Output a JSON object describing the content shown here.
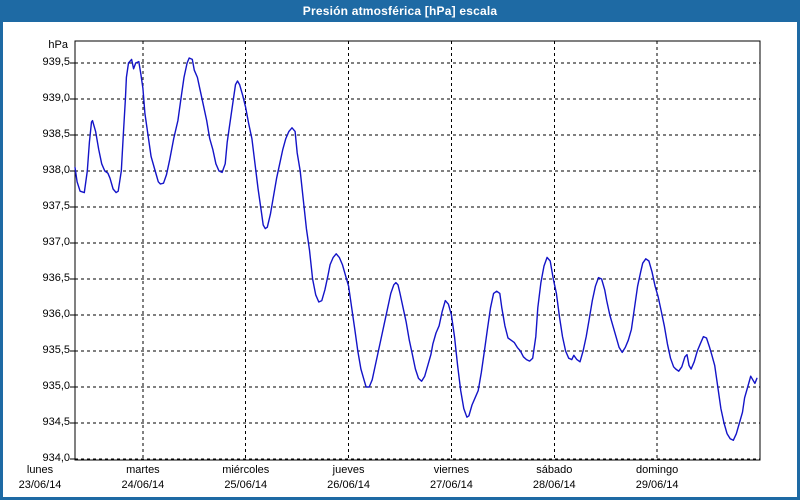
{
  "window": {
    "title": "Presión atmosférica [hPa] escala"
  },
  "colors": {
    "accent": "#1e6aa4",
    "line": "#1414c8",
    "grid": "#000000",
    "axis": "#000000",
    "text": "#000000",
    "plot_bg": "#ffffff",
    "title_text": "#ffffff"
  },
  "chart_data": {
    "type": "line",
    "title": "Presión atmosférica [hPa] escala",
    "xlabel": "",
    "ylabel": "hPa",
    "grid": "dashed",
    "legend": "none",
    "ylim": [
      933.99,
      939.81
    ],
    "xlim_days": [
      0.34,
      7.0
    ],
    "gridline_days": [
      1,
      2,
      3,
      4,
      5,
      6
    ],
    "y_ticks": [
      {
        "v": 939.5,
        "label": "939,5"
      },
      {
        "v": 939.0,
        "label": "939,0"
      },
      {
        "v": 938.5,
        "label": "938,5"
      },
      {
        "v": 938.0,
        "label": "938,0"
      },
      {
        "v": 937.5,
        "label": "937,5"
      },
      {
        "v": 937.0,
        "label": "937,0"
      },
      {
        "v": 936.5,
        "label": "936,5"
      },
      {
        "v": 936.0,
        "label": "936,0"
      },
      {
        "v": 935.5,
        "label": "935,5"
      },
      {
        "v": 935.0,
        "label": "935,0"
      },
      {
        "v": 934.5,
        "label": "934,5"
      },
      {
        "v": 934.0,
        "label": "934,0"
      }
    ],
    "x_ticks": [
      {
        "t": 0,
        "day": "lunes",
        "date": "23/06/14"
      },
      {
        "t": 1,
        "day": "martes",
        "date": "24/06/14"
      },
      {
        "t": 2,
        "day": "miércoles",
        "date": "25/06/14"
      },
      {
        "t": 3,
        "day": "jueves",
        "date": "26/06/14"
      },
      {
        "t": 4,
        "day": "viernes",
        "date": "27/06/14"
      },
      {
        "t": 5,
        "day": "sábado",
        "date": "28/06/14"
      },
      {
        "t": 6,
        "day": "domingo",
        "date": "29/06/14"
      }
    ],
    "series": [
      {
        "name": "Presión atmosférica",
        "points": [
          [
            0.34,
            938.05
          ],
          [
            0.36,
            937.85
          ],
          [
            0.39,
            937.72
          ],
          [
            0.43,
            937.7
          ],
          [
            0.46,
            938.0
          ],
          [
            0.48,
            938.4
          ],
          [
            0.5,
            938.68
          ],
          [
            0.51,
            938.7
          ],
          [
            0.54,
            938.55
          ],
          [
            0.57,
            938.3
          ],
          [
            0.6,
            938.1
          ],
          [
            0.63,
            938.0
          ],
          [
            0.66,
            937.97
          ],
          [
            0.68,
            937.9
          ],
          [
            0.71,
            937.75
          ],
          [
            0.74,
            937.7
          ],
          [
            0.76,
            937.72
          ],
          [
            0.79,
            938.0
          ],
          [
            0.81,
            938.5
          ],
          [
            0.83,
            939.0
          ],
          [
            0.84,
            939.3
          ],
          [
            0.86,
            939.5
          ],
          [
            0.89,
            939.55
          ],
          [
            0.91,
            939.42
          ],
          [
            0.93,
            939.5
          ],
          [
            0.96,
            939.52
          ],
          [
            0.98,
            939.35
          ],
          [
            1.0,
            939.15
          ],
          [
            1.02,
            938.8
          ],
          [
            1.05,
            938.5
          ],
          [
            1.08,
            938.2
          ],
          [
            1.12,
            938.0
          ],
          [
            1.15,
            937.85
          ],
          [
            1.17,
            937.82
          ],
          [
            1.2,
            937.83
          ],
          [
            1.23,
            937.95
          ],
          [
            1.26,
            938.15
          ],
          [
            1.3,
            938.45
          ],
          [
            1.34,
            938.7
          ],
          [
            1.37,
            939.0
          ],
          [
            1.4,
            939.3
          ],
          [
            1.43,
            939.5
          ],
          [
            1.45,
            939.57
          ],
          [
            1.48,
            939.55
          ],
          [
            1.5,
            939.4
          ],
          [
            1.53,
            939.3
          ],
          [
            1.56,
            939.1
          ],
          [
            1.59,
            938.9
          ],
          [
            1.62,
            938.7
          ],
          [
            1.65,
            938.45
          ],
          [
            1.68,
            938.3
          ],
          [
            1.71,
            938.1
          ],
          [
            1.74,
            938.0
          ],
          [
            1.77,
            937.98
          ],
          [
            1.8,
            938.1
          ],
          [
            1.82,
            938.4
          ],
          [
            1.85,
            938.7
          ],
          [
            1.88,
            939.0
          ],
          [
            1.9,
            939.2
          ],
          [
            1.92,
            939.25
          ],
          [
            1.94,
            939.2
          ],
          [
            1.97,
            939.05
          ],
          [
            2.0,
            938.88
          ],
          [
            2.03,
            938.65
          ],
          [
            2.06,
            938.45
          ],
          [
            2.09,
            938.1
          ],
          [
            2.12,
            937.75
          ],
          [
            2.15,
            937.45
          ],
          [
            2.17,
            937.25
          ],
          [
            2.19,
            937.2
          ],
          [
            2.21,
            937.22
          ],
          [
            2.24,
            937.4
          ],
          [
            2.27,
            937.65
          ],
          [
            2.3,
            937.9
          ],
          [
            2.33,
            938.1
          ],
          [
            2.36,
            938.3
          ],
          [
            2.39,
            938.45
          ],
          [
            2.42,
            938.55
          ],
          [
            2.45,
            938.6
          ],
          [
            2.48,
            938.55
          ],
          [
            2.5,
            938.25
          ],
          [
            2.53,
            938.0
          ],
          [
            2.56,
            937.6
          ],
          [
            2.59,
            937.2
          ],
          [
            2.62,
            936.9
          ],
          [
            2.65,
            936.5
          ],
          [
            2.68,
            936.28
          ],
          [
            2.71,
            936.18
          ],
          [
            2.74,
            936.2
          ],
          [
            2.77,
            936.35
          ],
          [
            2.8,
            936.55
          ],
          [
            2.82,
            936.7
          ],
          [
            2.85,
            936.8
          ],
          [
            2.88,
            936.85
          ],
          [
            2.91,
            936.8
          ],
          [
            2.94,
            936.7
          ],
          [
            2.97,
            936.55
          ],
          [
            3.0,
            936.4
          ],
          [
            3.03,
            936.1
          ],
          [
            3.06,
            935.8
          ],
          [
            3.09,
            935.5
          ],
          [
            3.12,
            935.25
          ],
          [
            3.15,
            935.1
          ],
          [
            3.17,
            935.0
          ],
          [
            3.2,
            935.0
          ],
          [
            3.23,
            935.1
          ],
          [
            3.26,
            935.3
          ],
          [
            3.29,
            935.5
          ],
          [
            3.32,
            935.7
          ],
          [
            3.35,
            935.9
          ],
          [
            3.38,
            936.1
          ],
          [
            3.41,
            936.3
          ],
          [
            3.44,
            936.42
          ],
          [
            3.46,
            936.45
          ],
          [
            3.48,
            936.42
          ],
          [
            3.5,
            936.3
          ],
          [
            3.53,
            936.1
          ],
          [
            3.56,
            935.9
          ],
          [
            3.59,
            935.65
          ],
          [
            3.62,
            935.45
          ],
          [
            3.65,
            935.25
          ],
          [
            3.68,
            935.12
          ],
          [
            3.71,
            935.08
          ],
          [
            3.74,
            935.15
          ],
          [
            3.77,
            935.3
          ],
          [
            3.8,
            935.45
          ],
          [
            3.82,
            935.6
          ],
          [
            3.85,
            935.75
          ],
          [
            3.88,
            935.85
          ],
          [
            3.91,
            936.05
          ],
          [
            3.94,
            936.2
          ],
          [
            3.97,
            936.15
          ],
          [
            4.0,
            936.0
          ],
          [
            4.03,
            935.7
          ],
          [
            4.06,
            935.3
          ],
          [
            4.09,
            934.95
          ],
          [
            4.12,
            934.7
          ],
          [
            4.15,
            934.58
          ],
          [
            4.17,
            934.6
          ],
          [
            4.2,
            934.75
          ],
          [
            4.23,
            934.85
          ],
          [
            4.26,
            934.95
          ],
          [
            4.29,
            935.2
          ],
          [
            4.32,
            935.5
          ],
          [
            4.35,
            935.8
          ],
          [
            4.38,
            936.1
          ],
          [
            4.41,
            936.3
          ],
          [
            4.44,
            936.33
          ],
          [
            4.47,
            936.3
          ],
          [
            4.49,
            936.1
          ],
          [
            4.52,
            935.85
          ],
          [
            4.55,
            935.68
          ],
          [
            4.58,
            935.65
          ],
          [
            4.61,
            935.62
          ],
          [
            4.64,
            935.55
          ],
          [
            4.67,
            935.5
          ],
          [
            4.7,
            935.42
          ],
          [
            4.73,
            935.38
          ],
          [
            4.76,
            935.36
          ],
          [
            4.79,
            935.4
          ],
          [
            4.82,
            935.7
          ],
          [
            4.84,
            936.1
          ],
          [
            4.87,
            936.45
          ],
          [
            4.9,
            936.68
          ],
          [
            4.93,
            936.8
          ],
          [
            4.96,
            936.75
          ],
          [
            4.99,
            936.5
          ],
          [
            5.02,
            936.3
          ],
          [
            5.05,
            935.98
          ],
          [
            5.08,
            935.7
          ],
          [
            5.11,
            935.5
          ],
          [
            5.14,
            935.4
          ],
          [
            5.17,
            935.38
          ],
          [
            5.19,
            935.44
          ],
          [
            5.22,
            935.38
          ],
          [
            5.25,
            935.35
          ],
          [
            5.28,
            935.5
          ],
          [
            5.31,
            935.7
          ],
          [
            5.34,
            935.95
          ],
          [
            5.37,
            936.2
          ],
          [
            5.4,
            936.4
          ],
          [
            5.43,
            936.52
          ],
          [
            5.46,
            936.5
          ],
          [
            5.49,
            936.35
          ],
          [
            5.51,
            936.2
          ],
          [
            5.54,
            936.0
          ],
          [
            5.57,
            935.85
          ],
          [
            5.6,
            935.7
          ],
          [
            5.63,
            935.55
          ],
          [
            5.66,
            935.48
          ],
          [
            5.69,
            935.55
          ],
          [
            5.72,
            935.65
          ],
          [
            5.75,
            935.8
          ],
          [
            5.78,
            936.1
          ],
          [
            5.81,
            936.4
          ],
          [
            5.84,
            936.6
          ],
          [
            5.86,
            936.72
          ],
          [
            5.89,
            936.78
          ],
          [
            5.92,
            936.75
          ],
          [
            5.95,
            936.6
          ],
          [
            5.98,
            936.4
          ],
          [
            6.01,
            936.25
          ],
          [
            6.04,
            936.05
          ],
          [
            6.07,
            935.85
          ],
          [
            6.1,
            935.6
          ],
          [
            6.13,
            935.4
          ],
          [
            6.16,
            935.28
          ],
          [
            6.18,
            935.25
          ],
          [
            6.21,
            935.22
          ],
          [
            6.24,
            935.28
          ],
          [
            6.27,
            935.42
          ],
          [
            6.29,
            935.45
          ],
          [
            6.31,
            935.3
          ],
          [
            6.33,
            935.25
          ],
          [
            6.36,
            935.35
          ],
          [
            6.39,
            935.5
          ],
          [
            6.42,
            935.6
          ],
          [
            6.45,
            935.7
          ],
          [
            6.48,
            935.68
          ],
          [
            6.51,
            935.55
          ],
          [
            6.53,
            935.45
          ],
          [
            6.56,
            935.3
          ],
          [
            6.59,
            935.0
          ],
          [
            6.62,
            934.7
          ],
          [
            6.65,
            934.5
          ],
          [
            6.68,
            934.35
          ],
          [
            6.71,
            934.28
          ],
          [
            6.74,
            934.26
          ],
          [
            6.77,
            934.35
          ],
          [
            6.8,
            934.5
          ],
          [
            6.83,
            934.65
          ],
          [
            6.85,
            934.85
          ],
          [
            6.88,
            935.0
          ],
          [
            6.91,
            935.15
          ],
          [
            6.93,
            935.1
          ],
          [
            6.95,
            935.05
          ],
          [
            6.97,
            935.12
          ]
        ]
      }
    ]
  }
}
